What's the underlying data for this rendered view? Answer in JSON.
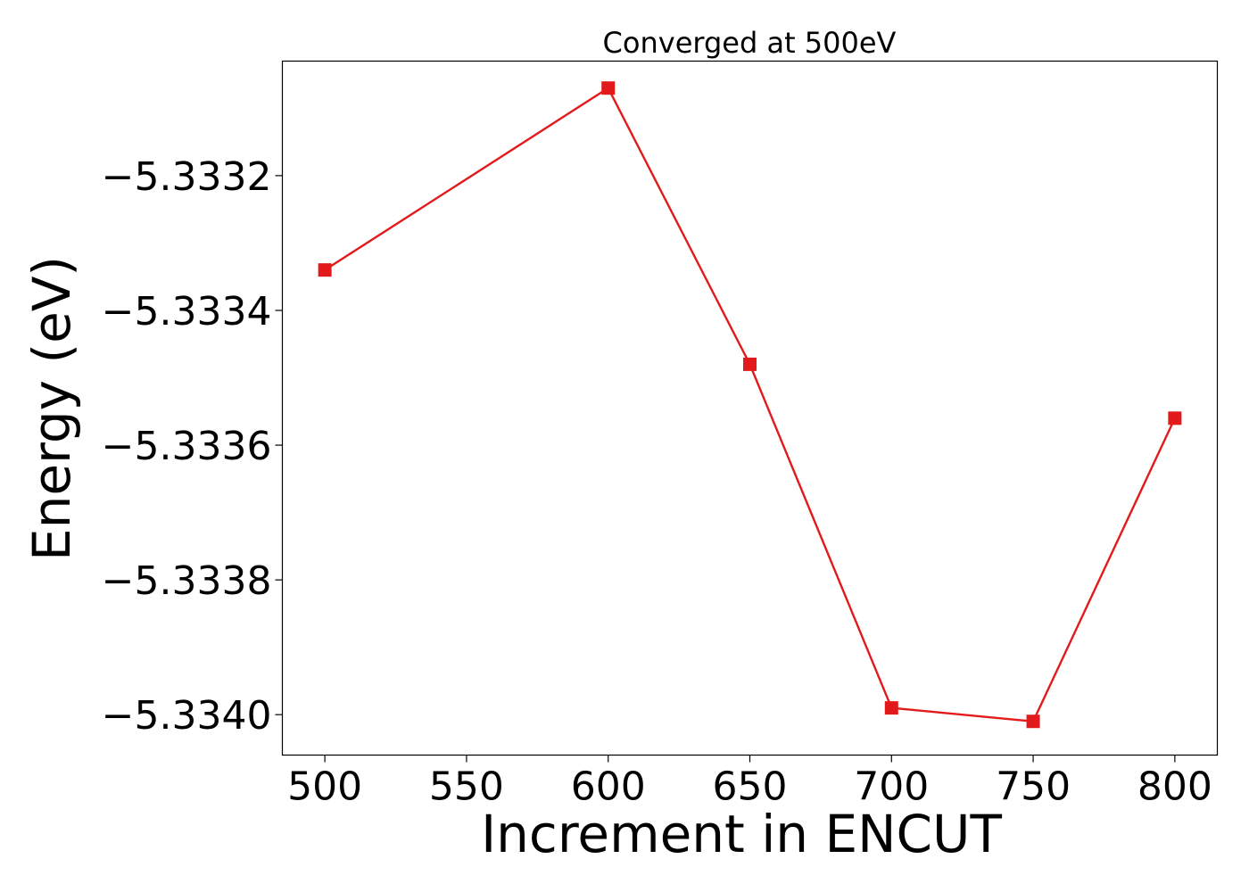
{
  "chart_data": {
    "type": "line",
    "title": "Converged at 500eV",
    "xlabel": "Increment in ENCUT",
    "ylabel": "Energy (eV)",
    "x": [
      500,
      600,
      650,
      700,
      750,
      800
    ],
    "series": [
      {
        "values": [
          -5.33334,
          -5.33307,
          -5.33348,
          -5.33399,
          -5.33401,
          -5.33356
        ],
        "color": "#e31a1c",
        "marker": "square"
      }
    ],
    "xticks": [
      500,
      550,
      600,
      650,
      700,
      750,
      800
    ],
    "xtick_labels": [
      "500",
      "550",
      "600",
      "650",
      "700",
      "750",
      "800"
    ],
    "yticks": [
      -5.3332,
      -5.3334,
      -5.3336,
      -5.3338,
      -5.334
    ],
    "ytick_labels": [
      "−5.3332",
      "−5.3334",
      "−5.3336",
      "−5.3338",
      "−5.3340"
    ],
    "xlim": [
      485,
      815
    ],
    "ylim": [
      -5.33406,
      -5.33303
    ],
    "grid": false,
    "legend": false
  }
}
